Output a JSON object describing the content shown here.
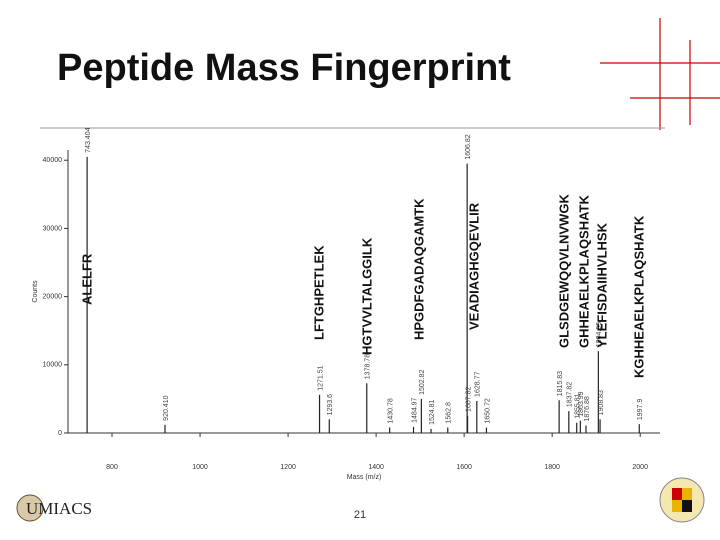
{
  "title": "Peptide Mass Fingerprint",
  "page_number": "21",
  "logo_text": "UMIACS",
  "chart_data": {
    "type": "stem",
    "color": "#222",
    "x_label": "Mass (m/z)",
    "y_label": "Counts",
    "x": [
      743.404,
      920.41,
      1271.51,
      1293.6,
      1378.78,
      1430.78,
      1484.97,
      1502.82,
      1524.81,
      1562.8,
      1606.82,
      1607.82,
      1628.77,
      1650.72,
      1815.83,
      1837.82,
      1855.81,
      1863.99,
      1876.88,
      1904.95,
      1908.83,
      1997.9
    ],
    "values": [
      40500,
      1200,
      5600,
      2000,
      7300,
      800,
      900,
      5000,
      600,
      800,
      39500,
      2500,
      4700,
      800,
      4800,
      3200,
      1500,
      1800,
      1100,
      12000,
      2000,
      1300
    ],
    "peak_labels": [
      "743.404",
      "920.410",
      "1271.51",
      "1293.6",
      "1378.78",
      "1430.78",
      "1484.97",
      "1502.82",
      "1524.81",
      "1562.8",
      "1606.82",
      "1607.82",
      "1628.77",
      "1650.72",
      "1815.83",
      "1837.82",
      "1855.81",
      "1863.99",
      "1876.88",
      "1904.95",
      "1908.83",
      "1997.9"
    ],
    "xlim": [
      700,
      2045
    ],
    "xticks": [
      800,
      1000,
      1200,
      1400,
      1600,
      1800,
      2000
    ],
    "ylim": [
      0,
      41500
    ],
    "yticks": [
      0,
      10000,
      20000,
      30000,
      40000
    ],
    "annotations": [
      "ALELFR",
      "LFTGHPETLEK",
      "HGTVVLTALGGILK",
      "HPGDFGADAQGAMTK",
      "VEADIAGHGQEVLIR",
      "GLSDGEWQQVLNVWGK",
      "GHHEAELKPLAQSHATK",
      "YLEFISDAIIHVLHSK",
      "KGHHEAELKPLAQSHATK"
    ]
  }
}
